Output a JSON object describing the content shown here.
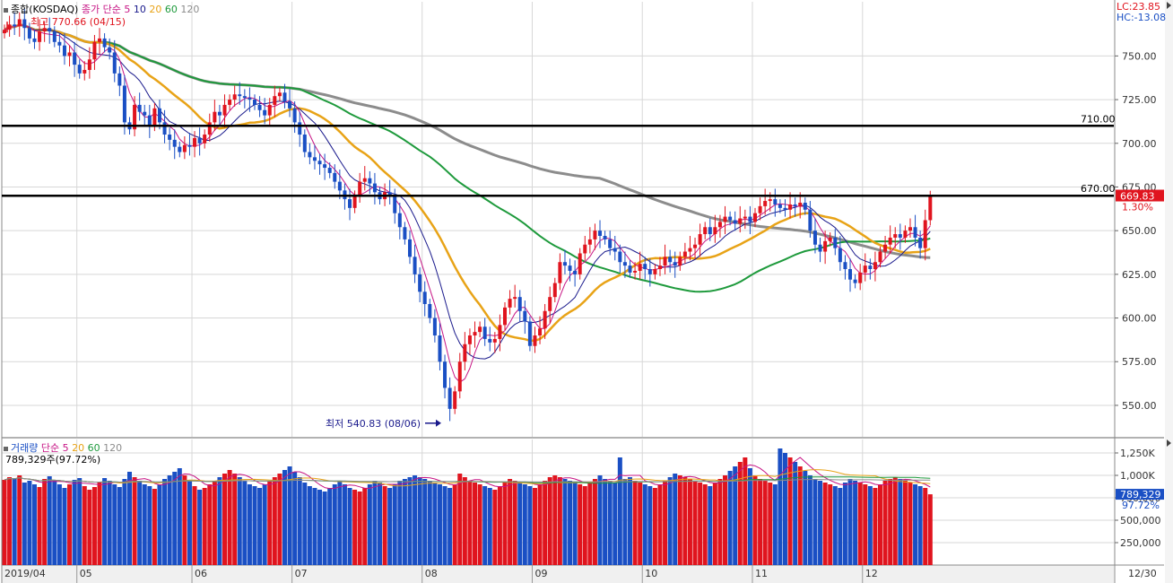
{
  "price_panel": {
    "title": "종합(KOSDAQ)",
    "ma_label": "종가 단순",
    "ma_periods": [
      "5",
      "10",
      "20",
      "60",
      "120"
    ],
    "high_marker": "최고 770.66 (04/15)",
    "low_marker": "최저 540.83 (08/06)",
    "lc_label": "LC:23.85",
    "hc_label": "HC:-13.08",
    "current_price": "669.83",
    "change_pct": "1.30%",
    "level_labels": [
      "710.00",
      "670.00"
    ]
  },
  "volume_panel": {
    "title": "거래량",
    "ma_label": "단순",
    "ma_periods": [
      "5",
      "20",
      "60",
      "120"
    ],
    "last_volume": "789,329주(97.72%)",
    "current_volume": "789,329",
    "current_pct": "97.72%"
  },
  "x_axis": {
    "month_labels": [
      "2019/04",
      "05",
      "06",
      "07",
      "08",
      "09",
      "10",
      "11",
      "12"
    ],
    "end_label": "12/30"
  },
  "colors": {
    "up": "#e0141e",
    "down": "#1a4fc4",
    "ma5": "#c71585",
    "ma10": "#1a1a8c",
    "ma20": "#e8a317",
    "ma60": "#1e9a3c",
    "ma120": "#8c8c8c",
    "grid": "#d7d7d7",
    "axis_bg": "#f0f0f0",
    "axis_text": "#333333"
  },
  "chart_data": [
    {
      "type": "candlestick",
      "title": "종합(KOSDAQ)",
      "yticks": [
        550,
        575,
        600,
        625,
        650,
        675,
        700,
        725,
        750
      ],
      "ylim": [
        532,
        781
      ],
      "grid": true,
      "horizontal_levels": [
        710,
        670
      ],
      "high": {
        "value": 770.66,
        "date": "04/15"
      },
      "low": {
        "value": 540.83,
        "date": "08/06"
      },
      "last_close": 669.83,
      "projection": [
        [
          670,
          658
        ],
        [
          701,
          686
        ],
        [
          727,
          672
        ],
        [
          758,
          708
        ],
        [
          770,
          700
        ]
      ],
      "closes": [
        765,
        768,
        767,
        771,
        766,
        760,
        758,
        764,
        766,
        764,
        758,
        756,
        750,
        752,
        745,
        740,
        742,
        748,
        758,
        760,
        755,
        752,
        740,
        733,
        712,
        708,
        722,
        718,
        716,
        710,
        720,
        712,
        705,
        702,
        698,
        695,
        699,
        698,
        703,
        700,
        705,
        712,
        718,
        716,
        722,
        725,
        728,
        727,
        726,
        725,
        722,
        719,
        716,
        722,
        727,
        729,
        724,
        720,
        712,
        705,
        695,
        692,
        690,
        688,
        686,
        683,
        678,
        673,
        668,
        663,
        670,
        678,
        680,
        677,
        672,
        668,
        672,
        670,
        660,
        652,
        645,
        635,
        625,
        615,
        608,
        600,
        590,
        575,
        560,
        548,
        558,
        575,
        585,
        590,
        592,
        595,
        588,
        586,
        588,
        596,
        606,
        611,
        612,
        604,
        598,
        584,
        590,
        594,
        604,
        612,
        620,
        632,
        630,
        627,
        625,
        637,
        642,
        645,
        650,
        647,
        645,
        640,
        638,
        632,
        630,
        626,
        627,
        631,
        628,
        625,
        628,
        630,
        635,
        632,
        630,
        635,
        638,
        640,
        642,
        648,
        652,
        648,
        652,
        655,
        658,
        656,
        654,
        657,
        658,
        655,
        660,
        664,
        667,
        668,
        665,
        663,
        662,
        665,
        664,
        666,
        662,
        650,
        642,
        638,
        644,
        646,
        640,
        632,
        628,
        622,
        620,
        626,
        630,
        628,
        632,
        638,
        642,
        646,
        648,
        646,
        650,
        652,
        646,
        640,
        656,
        669.83
      ],
      "ma_series": [
        {
          "period": 5,
          "color_key": "ma5"
        },
        {
          "period": 10,
          "color_key": "ma10"
        },
        {
          "period": 20,
          "color_key": "ma20"
        },
        {
          "period": 60,
          "color_key": "ma60"
        },
        {
          "period": 120,
          "color_key": "ma120"
        }
      ]
    },
    {
      "type": "bar",
      "title": "거래량",
      "yticks": [
        250,
        500,
        750,
        1000,
        1250
      ],
      "ytick_labels": [
        "250,000",
        "500,000",
        "750,000",
        "1,000K",
        "1,250K"
      ],
      "ylim": [
        0,
        1300
      ],
      "unit": "thousand shares",
      "last_value": 789.329,
      "values": [
        950,
        980,
        960,
        1000,
        920,
        940,
        900,
        870,
        960,
        990,
        940,
        900,
        860,
        900,
        950,
        970,
        880,
        840,
        870,
        930,
        970,
        940,
        900,
        870,
        960,
        1040,
        980,
        940,
        900,
        880,
        850,
        900,
        960,
        1000,
        1040,
        1080,
        1000,
        940,
        880,
        840,
        860,
        900,
        940,
        980,
        1020,
        1060,
        1020,
        980,
        940,
        900,
        880,
        860,
        900,
        940,
        980,
        1020,
        1060,
        1100,
        1040,
        980,
        920,
        880,
        860,
        840,
        820,
        860,
        900,
        940,
        900,
        860,
        840,
        820,
        860,
        900,
        940,
        920,
        880,
        860,
        900,
        940,
        960,
        980,
        1000,
        980,
        960,
        940,
        920,
        900,
        880,
        860,
        900,
        1020,
        980,
        940,
        920,
        900,
        880,
        860,
        840,
        880,
        920,
        960,
        940,
        920,
        900,
        880,
        860,
        900,
        940,
        980,
        1000,
        980,
        960,
        940,
        920,
        900,
        880,
        920,
        960,
        1000,
        960,
        940,
        920,
        1200,
        960,
        980,
        940,
        920,
        900,
        880,
        860,
        900,
        940,
        980,
        1020,
        1000,
        980,
        960,
        940,
        920,
        900,
        880,
        920,
        960,
        1000,
        1050,
        1100,
        1150,
        1200,
        1080,
        1000,
        960,
        940,
        920,
        900,
        1300,
        1250,
        1200,
        1150,
        1100,
        1050,
        1000,
        960,
        940,
        920,
        900,
        880,
        860,
        920,
        960,
        940,
        920,
        900,
        880,
        860,
        900,
        940,
        960,
        980,
        960,
        940,
        920,
        900,
        880,
        860,
        789
      ]
    }
  ]
}
